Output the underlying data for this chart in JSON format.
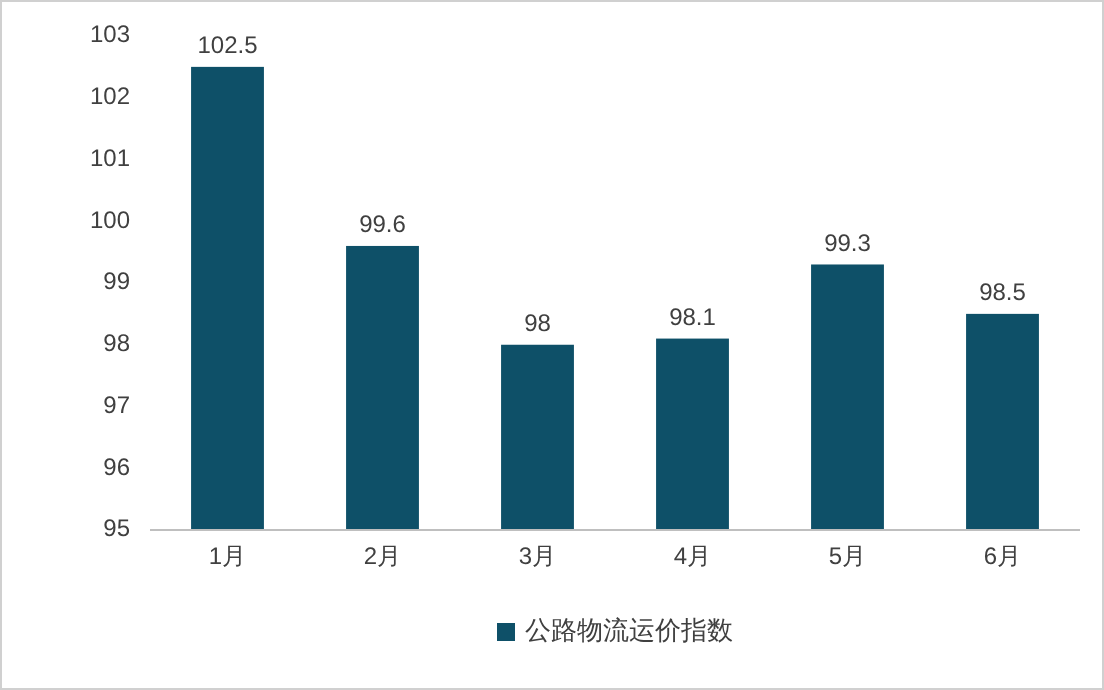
{
  "chart_data": {
    "type": "bar",
    "categories": [
      "1月",
      "2月",
      "3月",
      "4月",
      "5月",
      "6月"
    ],
    "series": [
      {
        "name": "公路物流运价指数",
        "color": "#0e5068",
        "values": [
          102.5,
          99.6,
          98,
          98.1,
          99.3,
          98.5
        ]
      }
    ],
    "ylim": [
      95,
      103
    ],
    "yticks": [
      95,
      96,
      97,
      98,
      99,
      100,
      101,
      102,
      103
    ],
    "data_labels": true,
    "legend": "bottom",
    "grid": false
  }
}
